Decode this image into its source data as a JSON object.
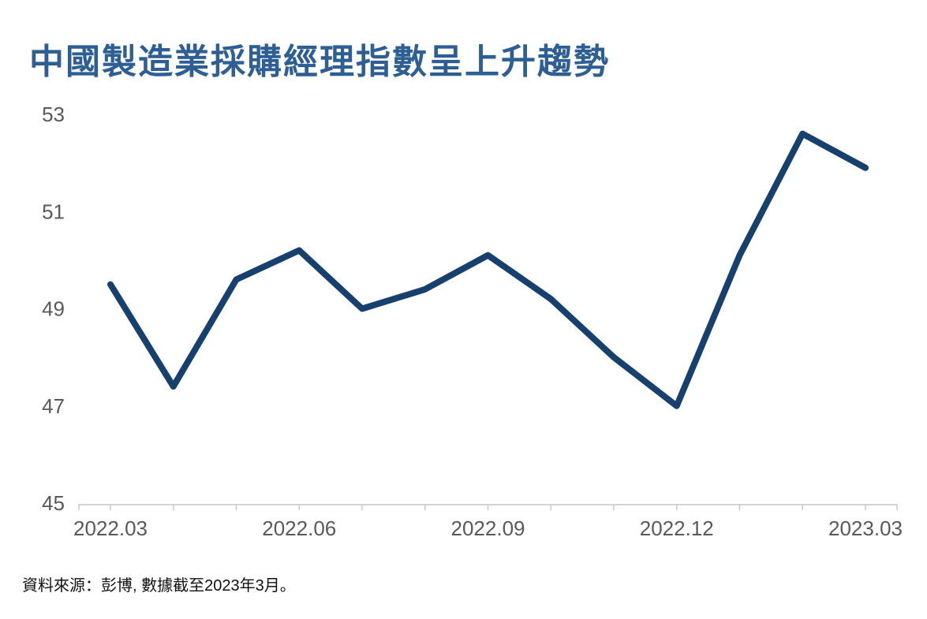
{
  "page": {
    "title": "中國製造業採購經理指數呈上升趨勢",
    "source_note": "資料來源：彭博, 數據截至2023年3月。"
  },
  "colors": {
    "title_text": "#2d5f94",
    "line": "#16416f",
    "axis_line": "#d2d2d2",
    "tick_mark": "#c9c9c9",
    "tick_label": "#595959",
    "source_text": "#111111",
    "background": "#ffffff"
  },
  "chart_data": {
    "type": "line",
    "title": "中國製造業採購經理指數呈上升趨勢",
    "x": [
      "2022.03",
      "2022.04",
      "2022.05",
      "2022.06",
      "2022.07",
      "2022.08",
      "2022.09",
      "2022.10",
      "2022.11",
      "2022.12",
      "2023.01",
      "2023.02",
      "2023.03"
    ],
    "values": [
      49.5,
      47.4,
      49.6,
      50.2,
      49.0,
      49.4,
      50.1,
      49.2,
      48.0,
      47.0,
      50.1,
      52.6,
      51.9
    ],
    "x_tick_labels": [
      "2022.03",
      "2022.06",
      "2022.09",
      "2022.12",
      "2023.03"
    ],
    "y_tick_labels": [
      "53",
      "51",
      "49",
      "47",
      "45"
    ],
    "yticks": [
      53,
      51,
      49,
      47,
      45
    ],
    "ylim": [
      45,
      53
    ],
    "xlabel": "",
    "ylabel": "",
    "grid": false,
    "legend": false,
    "source": "資料來源：彭博, 數據截至2023年3月。"
  }
}
